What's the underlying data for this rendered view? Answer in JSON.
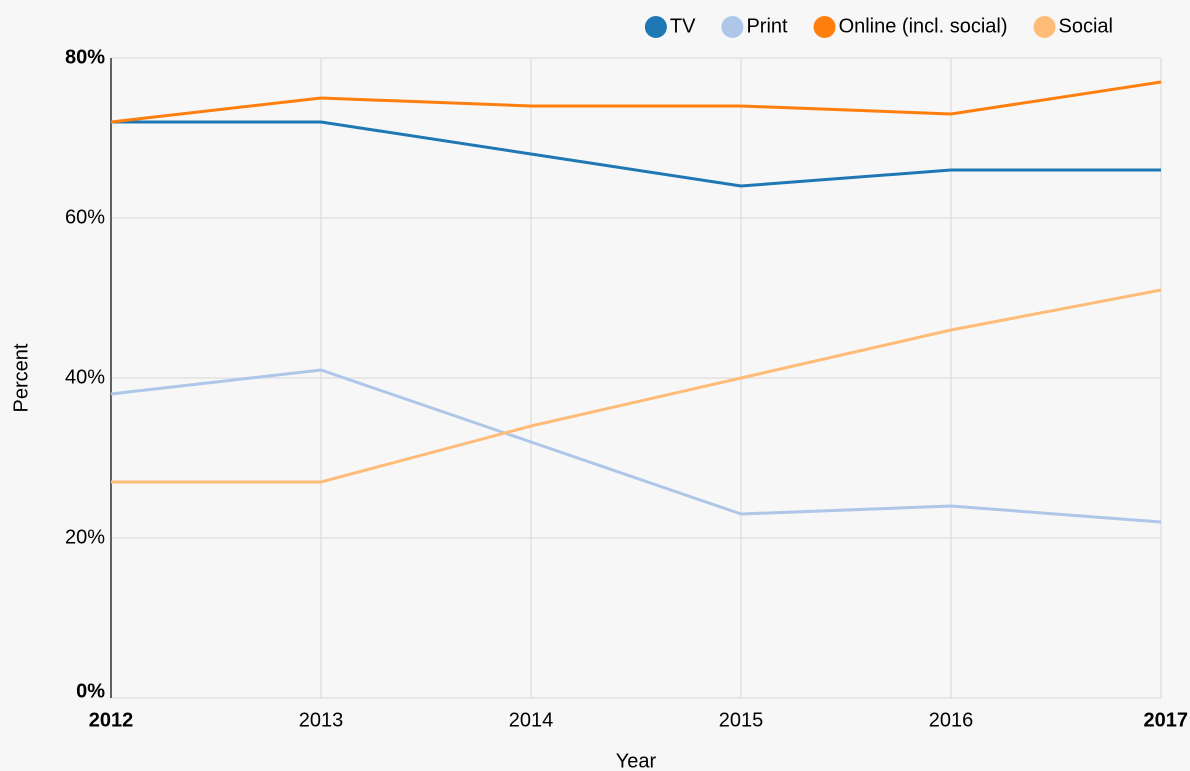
{
  "chart_data": {
    "type": "line",
    "xlabel": "Year",
    "ylabel": "Percent",
    "x": [
      2012,
      2013,
      2014,
      2015,
      2016,
      2017
    ],
    "xlim": [
      2012,
      2017
    ],
    "xticks": [
      2012,
      2013,
      2014,
      2015,
      2016,
      2017
    ],
    "ylim": [
      0,
      80
    ],
    "yticks": [
      {
        "value": 0,
        "label": "0%"
      },
      {
        "value": 20,
        "label": "20%"
      },
      {
        "value": 40,
        "label": "40%"
      },
      {
        "value": 60,
        "label": "60%"
      },
      {
        "value": 80,
        "label": "80%"
      }
    ],
    "grid": true,
    "legend": "top-right",
    "series": [
      {
        "name": "TV",
        "color": "#1f77b4",
        "values": [
          72,
          72,
          68,
          64,
          66,
          66
        ]
      },
      {
        "name": "Print",
        "color": "#aec7e8",
        "values": [
          38,
          41,
          32,
          23,
          24,
          22
        ]
      },
      {
        "name": "Online (incl. social)",
        "color": "#ff7f0e",
        "values": [
          72,
          75,
          74,
          74,
          73,
          77
        ]
      },
      {
        "name": "Social",
        "color": "#ffbb78",
        "values": [
          27,
          27,
          34,
          40,
          46,
          51
        ]
      }
    ]
  }
}
